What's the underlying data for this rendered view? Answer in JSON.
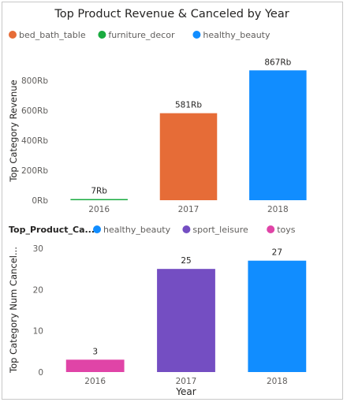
{
  "chart_data": [
    {
      "type": "bar",
      "title": "Top Product Revenue & Canceled by Year",
      "legend_title": "",
      "legend": [
        {
          "name": "bed_bath_table",
          "color": "#E66C37"
        },
        {
          "name": "furniture_decor",
          "color": "#1AAB40"
        },
        {
          "name": "healthy_beauty",
          "color": "#118DFF"
        }
      ],
      "legend_position": "top-left",
      "ylabel": "Top Category Revenue",
      "xlabel": "",
      "categories": [
        "2016",
        "2017",
        "2018"
      ],
      "values": [
        7,
        581,
        867
      ],
      "value_labels": [
        "7Rb",
        "581Rb",
        "867Rb"
      ],
      "bar_series": [
        "furniture_decor",
        "bed_bath_table",
        "healthy_beauty"
      ],
      "ylim": [
        0,
        900
      ],
      "yticks": [
        0,
        200,
        400,
        600,
        800
      ],
      "ytick_labels": [
        "0Rb",
        "200Rb",
        "400Rb",
        "600Rb",
        "800Rb"
      ],
      "grid": false
    },
    {
      "type": "bar",
      "title": "",
      "legend_title": "Top_Product_Ca...",
      "legend": [
        {
          "name": "healthy_beauty",
          "color": "#118DFF"
        },
        {
          "name": "sport_leisure",
          "color": "#744EC2"
        },
        {
          "name": "toys",
          "color": "#E044A7"
        }
      ],
      "legend_position": "top-left",
      "ylabel": "Top Category Num Cancel...",
      "xlabel": "Year",
      "categories": [
        "2016",
        "2017",
        "2018"
      ],
      "values": [
        3,
        25,
        27
      ],
      "value_labels": [
        "3",
        "25",
        "27"
      ],
      "bar_series": [
        "toys",
        "sport_leisure",
        "healthy_beauty"
      ],
      "ylim": [
        0,
        30
      ],
      "yticks": [
        0,
        10,
        20,
        30
      ],
      "ytick_labels": [
        "0",
        "10",
        "20",
        "30"
      ],
      "grid": false
    }
  ]
}
